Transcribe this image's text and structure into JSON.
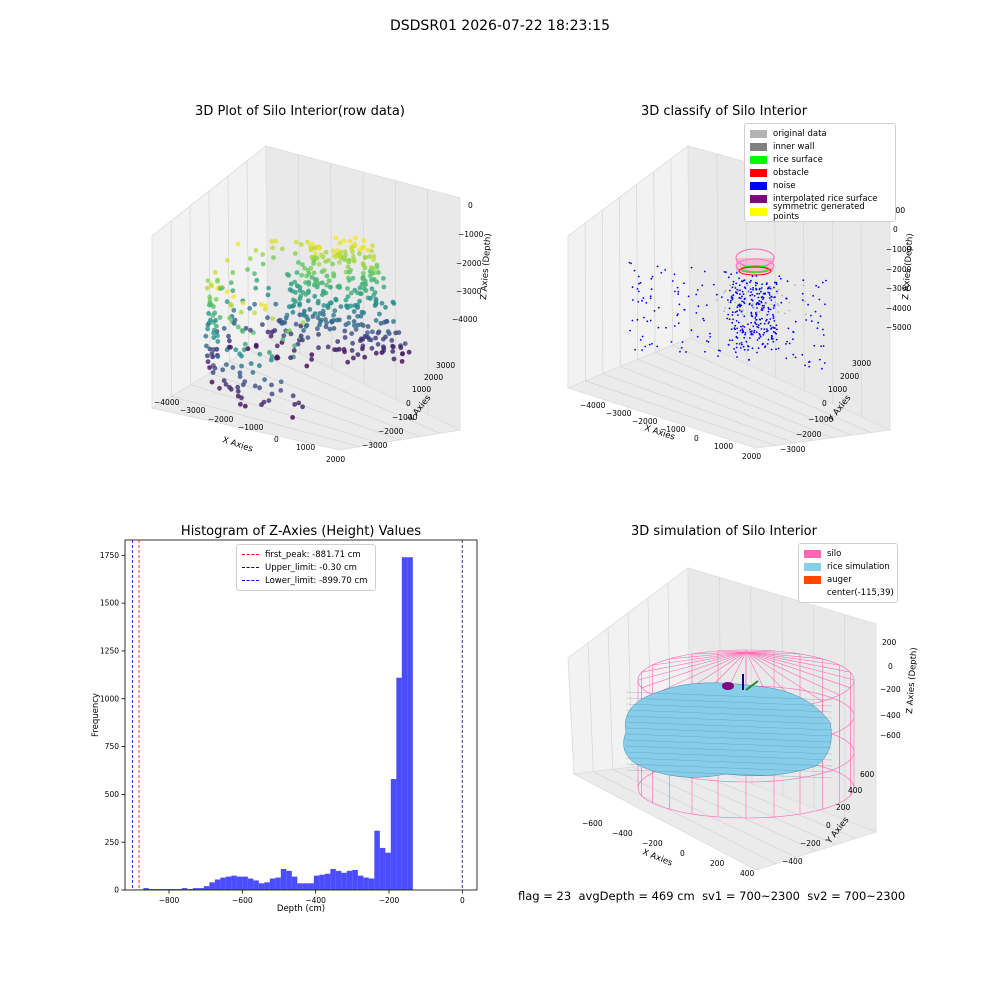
{
  "suptitle": "DSDSR01 2026-07-22 18:23:15",
  "panels": {
    "raw": {
      "title": "3D Plot of Silo Interior(row data)",
      "xlabel": "X Axies",
      "ylabel": "Y Axies",
      "zlabel": "Z Axies (Depth)",
      "xticks": [
        "−4000",
        "−3000",
        "−2000",
        "−1000",
        "0",
        "1000",
        "2000"
      ],
      "yticks": [
        "−3000",
        "−2000",
        "−1000",
        "0",
        "1000",
        "2000",
        "3000"
      ],
      "zticks": [
        "−4000",
        "−3000",
        "−2000",
        "−1000",
        "0"
      ],
      "colormap": "viridis"
    },
    "classify": {
      "title": "3D classify of Silo Interior",
      "xlabel": "X Axies",
      "ylabel": "Y Axies",
      "zlabel": "Z Axies (Depth)",
      "xticks": [
        "−4000",
        "−3000",
        "−2000",
        "−1000",
        "0",
        "1000",
        "2000"
      ],
      "yticks": [
        "−3000",
        "−2000",
        "−1000",
        "0",
        "1000",
        "2000",
        "3000"
      ],
      "zticks": [
        "−5000",
        "−4000",
        "−3000",
        "−2000",
        "−1000",
        "0",
        "1000"
      ],
      "legend": [
        {
          "label": "original data",
          "color": "#b3b3b3"
        },
        {
          "label": "inner wall",
          "color": "#808080"
        },
        {
          "label": "rice surface",
          "color": "#00ff00"
        },
        {
          "label": "obstacle",
          "color": "#ff0000"
        },
        {
          "label": "noise",
          "color": "#0000ff"
        },
        {
          "label": "interpolated rice surface",
          "color": "#800080"
        },
        {
          "label": "symmetric generated points",
          "color": "#ffff00"
        }
      ]
    },
    "simulation": {
      "title": "3D simulation of Silo Interior",
      "xlabel": "X Axies",
      "ylabel": "Y Axies",
      "zlabel": "Z Axies (Depth)",
      "xticks": [
        "−600",
        "−400",
        "−200",
        "0",
        "200",
        "400"
      ],
      "yticks": [
        "−400",
        "−200",
        "0",
        "200",
        "400",
        "600"
      ],
      "zticks": [
        "−600",
        "−400",
        "−200",
        "0",
        "200"
      ],
      "legend": [
        {
          "label": "silo",
          "color": "#ff69b4"
        },
        {
          "label": "rice simulation",
          "color": "#87ceeb"
        },
        {
          "label": "auger",
          "color": "#ff4500"
        },
        {
          "label": "center(-115,39)",
          "color": ""
        }
      ]
    }
  },
  "chart_data": {
    "type": "bar",
    "title": "Histogram of Z-Axies (Height) Values",
    "xlabel": "Depth (cm)",
    "ylabel": "Frequency",
    "xlim": [
      -920,
      40
    ],
    "ylim": [
      0,
      1830
    ],
    "xticks": [
      "−800",
      "−600",
      "−400",
      "−200",
      "0"
    ],
    "yticks": [
      "0",
      "250",
      "500",
      "750",
      "1000",
      "1250",
      "1500",
      "1750"
    ],
    "bar_color": "#0000ff",
    "bin_width": 15,
    "bins_start": [
      -900,
      -885,
      -870,
      -855,
      -840,
      -825,
      -810,
      -795,
      -780,
      -765,
      -750,
      -735,
      -720,
      -705,
      -690,
      -675,
      -660,
      -645,
      -630,
      -615,
      -600,
      -585,
      -570,
      -555,
      -540,
      -525,
      -510,
      -495,
      -480,
      -465,
      -450,
      -435,
      -420,
      -405,
      -390,
      -375,
      -360,
      -345,
      -330,
      -315,
      -300,
      -285,
      -270,
      -255,
      -240,
      -225,
      -210,
      -195,
      -180,
      -165,
      -150,
      -135,
      -120,
      -105,
      -90,
      -75,
      -60,
      -45,
      -30,
      -15
    ],
    "values": [
      3,
      3,
      10,
      5,
      5,
      5,
      5,
      5,
      5,
      10,
      5,
      10,
      10,
      20,
      40,
      55,
      65,
      70,
      75,
      70,
      70,
      60,
      50,
      35,
      40,
      60,
      65,
      110,
      100,
      70,
      35,
      35,
      35,
      75,
      80,
      85,
      110,
      100,
      90,
      100,
      105,
      75,
      65,
      60,
      310,
      220,
      195,
      580,
      1110,
      1740,
      1740,
      0,
      0,
      0,
      0,
      0,
      0,
      0,
      0,
      0
    ],
    "reference_lines": [
      {
        "name": "first_peak: -881.71 cm",
        "x": -881.71,
        "color": "#ff0000"
      },
      {
        "name": "Upper_limit: -0.30 cm",
        "x": -0.3,
        "color": "#00008b"
      },
      {
        "name": "Lower_limit: -899.70 cm",
        "x": -899.7,
        "color": "#0000ff"
      }
    ]
  },
  "footer": {
    "flag": "flag = 23",
    "avgDepth": "avgDepth = 469 cm",
    "sv1": "sv1 = 700~2300",
    "sv2": "sv2 = 700~2300"
  }
}
